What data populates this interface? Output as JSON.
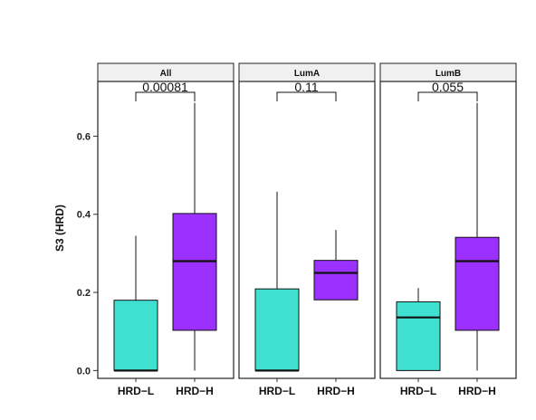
{
  "chart_data": {
    "type": "box",
    "ylabel": "S3 (HRD)",
    "ylim": [
      -0.02,
      0.74
    ],
    "yticks": [
      0.0,
      0.2,
      0.4,
      0.6
    ],
    "ytick_labels": [
      "0.0",
      "0.2",
      "0.4",
      "0.6"
    ],
    "categories": [
      "HRD−L",
      "HRD−H"
    ],
    "colors": {
      "HRD−L": "#40e0d0",
      "HRD−H": "#9b30ff"
    },
    "grid": false,
    "panels": [
      {
        "title": "All",
        "pvalue": "0.00081",
        "boxes": [
          {
            "group": "HRD−L",
            "min": 0.0,
            "q1": 0.0,
            "median": 0.0,
            "q3": 0.18,
            "max": 0.345
          },
          {
            "group": "HRD−H",
            "min": 0.0,
            "q1": 0.103,
            "median": 0.28,
            "q3": 0.402,
            "max": 0.685
          }
        ]
      },
      {
        "title": "LumA",
        "pvalue": "0.11",
        "boxes": [
          {
            "group": "HRD−L",
            "min": 0.0,
            "q1": 0.0,
            "median": 0.0,
            "q3": 0.209,
            "max": 0.458
          },
          {
            "group": "HRD−H",
            "min": 0.181,
            "q1": 0.181,
            "median": 0.25,
            "q3": 0.282,
            "max": 0.36
          }
        ]
      },
      {
        "title": "LumB",
        "pvalue": "0.055",
        "boxes": [
          {
            "group": "HRD−L",
            "min": 0.0,
            "q1": 0.0,
            "median": 0.136,
            "q3": 0.176,
            "max": 0.211
          },
          {
            "group": "HRD−H",
            "min": 0.0,
            "q1": 0.103,
            "median": 0.28,
            "q3": 0.341,
            "max": 0.685
          }
        ]
      }
    ]
  }
}
